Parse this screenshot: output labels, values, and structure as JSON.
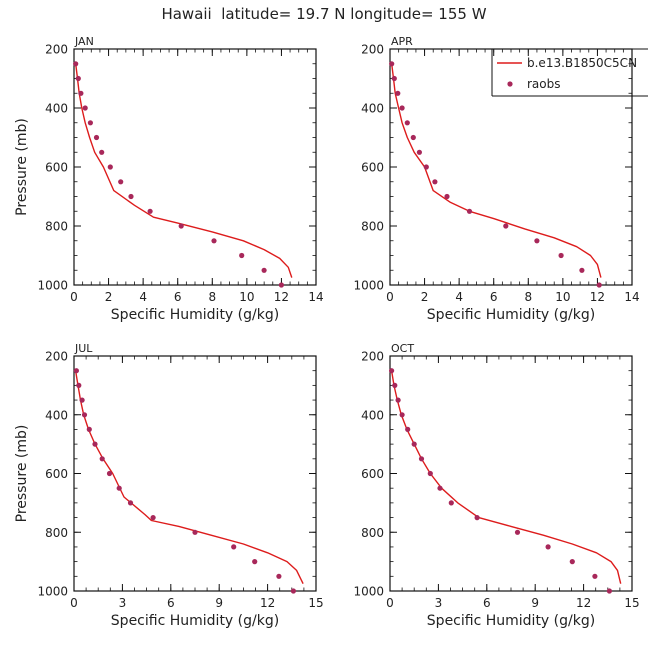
{
  "title": "Hawaii  latitude= 19.7 N longitude= 155 W",
  "colors": {
    "model": "#dd1c1c",
    "obs": "#a8285a",
    "axis": "#111111"
  },
  "legend": {
    "model_label": "b.e13.B1850C5CN",
    "obs_label": "raobs"
  },
  "chart_data": [
    {
      "type": "line",
      "panel": "JAN",
      "xlabel": "Specific Humidity (g/kg)",
      "ylabel": "Pressure (mb)",
      "xlim": [
        0,
        14
      ],
      "xticks": [
        0,
        2,
        4,
        6,
        8,
        10,
        12,
        14
      ],
      "ylim": [
        1000,
        200
      ],
      "yticks": [
        200,
        400,
        600,
        800,
        1000
      ],
      "series": [
        {
          "name": "b.e13.B1850C5CN",
          "kind": "line",
          "x": [
            0.1,
            0.2,
            0.3,
            0.45,
            0.65,
            0.9,
            1.2,
            1.7,
            2.3,
            3.5,
            4.6,
            6.0,
            8.0,
            9.8,
            11.0,
            11.9,
            12.4,
            12.6
          ],
          "y": [
            250,
            300,
            350,
            400,
            450,
            500,
            550,
            600,
            680,
            730,
            770,
            790,
            820,
            850,
            880,
            910,
            940,
            975
          ]
        },
        {
          "name": "raobs",
          "kind": "points",
          "x": [
            0.1,
            0.25,
            0.4,
            0.65,
            0.95,
            1.3,
            1.6,
            2.1,
            2.7,
            3.3,
            4.4,
            6.2,
            8.1,
            9.7,
            11.0,
            12.0
          ],
          "y": [
            250,
            300,
            350,
            400,
            450,
            500,
            550,
            600,
            650,
            700,
            750,
            800,
            850,
            900,
            950,
            1000
          ]
        }
      ]
    },
    {
      "type": "line",
      "panel": "APR",
      "xlabel": "Specific Humidity (g/kg)",
      "ylabel": "",
      "xlim": [
        0,
        14
      ],
      "xticks": [
        0,
        2,
        4,
        6,
        8,
        10,
        12,
        14
      ],
      "ylim": [
        1000,
        200
      ],
      "yticks": [
        200,
        400,
        600,
        800,
        1000
      ],
      "series": [
        {
          "name": "b.e13.B1850C5CN",
          "kind": "line",
          "x": [
            0.1,
            0.2,
            0.3,
            0.5,
            0.7,
            1.0,
            1.4,
            2.0,
            2.5,
            3.5,
            4.6,
            6.0,
            7.8,
            9.5,
            10.8,
            11.6,
            12.0,
            12.2
          ],
          "y": [
            250,
            300,
            350,
            400,
            450,
            500,
            550,
            600,
            680,
            720,
            750,
            775,
            810,
            840,
            870,
            900,
            930,
            975
          ]
        },
        {
          "name": "raobs",
          "kind": "points",
          "x": [
            0.1,
            0.25,
            0.45,
            0.7,
            1.0,
            1.35,
            1.7,
            2.1,
            2.6,
            3.3,
            4.6,
            6.7,
            8.5,
            9.9,
            11.1,
            12.1
          ],
          "y": [
            250,
            300,
            350,
            400,
            450,
            500,
            550,
            600,
            650,
            700,
            750,
            800,
            850,
            900,
            950,
            1000
          ]
        }
      ]
    },
    {
      "type": "line",
      "panel": "JUL",
      "xlabel": "Specific Humidity (g/kg)",
      "ylabel": "Pressure (mb)",
      "xlim": [
        0,
        15
      ],
      "xticks": [
        0,
        3,
        6,
        9,
        12,
        15
      ],
      "ylim": [
        1000,
        200
      ],
      "yticks": [
        200,
        400,
        600,
        800,
        1000
      ],
      "series": [
        {
          "name": "b.e13.B1850C5CN",
          "kind": "line",
          "x": [
            0.1,
            0.25,
            0.4,
            0.6,
            0.9,
            1.3,
            1.8,
            2.4,
            3.1,
            4.4,
            4.8,
            6.5,
            8.5,
            10.5,
            12.0,
            13.2,
            13.8,
            14.2
          ],
          "y": [
            250,
            300,
            350,
            400,
            450,
            500,
            550,
            600,
            680,
            740,
            760,
            780,
            810,
            840,
            870,
            900,
            930,
            975
          ]
        },
        {
          "name": "raobs",
          "kind": "points",
          "x": [
            0.15,
            0.3,
            0.5,
            0.65,
            0.95,
            1.3,
            1.75,
            2.2,
            2.8,
            3.5,
            4.9,
            7.5,
            9.9,
            11.2,
            12.7,
            13.6
          ],
          "y": [
            250,
            300,
            350,
            400,
            450,
            500,
            550,
            600,
            650,
            700,
            750,
            800,
            850,
            900,
            950,
            1000
          ]
        }
      ]
    },
    {
      "type": "line",
      "panel": "OCT",
      "xlabel": "Specific Humidity (g/kg)",
      "ylabel": "",
      "xlim": [
        0,
        15
      ],
      "xticks": [
        0,
        3,
        6,
        9,
        12,
        15
      ],
      "ylim": [
        1000,
        200
      ],
      "yticks": [
        200,
        400,
        600,
        800,
        1000
      ],
      "series": [
        {
          "name": "b.e13.B1850C5CN",
          "kind": "line",
          "x": [
            0.1,
            0.25,
            0.45,
            0.7,
            1.05,
            1.5,
            1.95,
            2.5,
            3.2,
            4.2,
            5.5,
            7.5,
            9.5,
            11.3,
            12.8,
            13.7,
            14.1,
            14.3
          ],
          "y": [
            250,
            300,
            350,
            400,
            450,
            500,
            550,
            600,
            650,
            700,
            750,
            780,
            810,
            840,
            870,
            900,
            930,
            975
          ]
        },
        {
          "name": "raobs",
          "kind": "points",
          "x": [
            0.1,
            0.3,
            0.5,
            0.75,
            1.1,
            1.5,
            1.95,
            2.5,
            3.1,
            3.8,
            5.4,
            7.9,
            9.8,
            11.3,
            12.7,
            13.6
          ],
          "y": [
            250,
            300,
            350,
            400,
            450,
            500,
            550,
            600,
            650,
            700,
            750,
            800,
            850,
            900,
            950,
            1000
          ]
        }
      ]
    }
  ]
}
